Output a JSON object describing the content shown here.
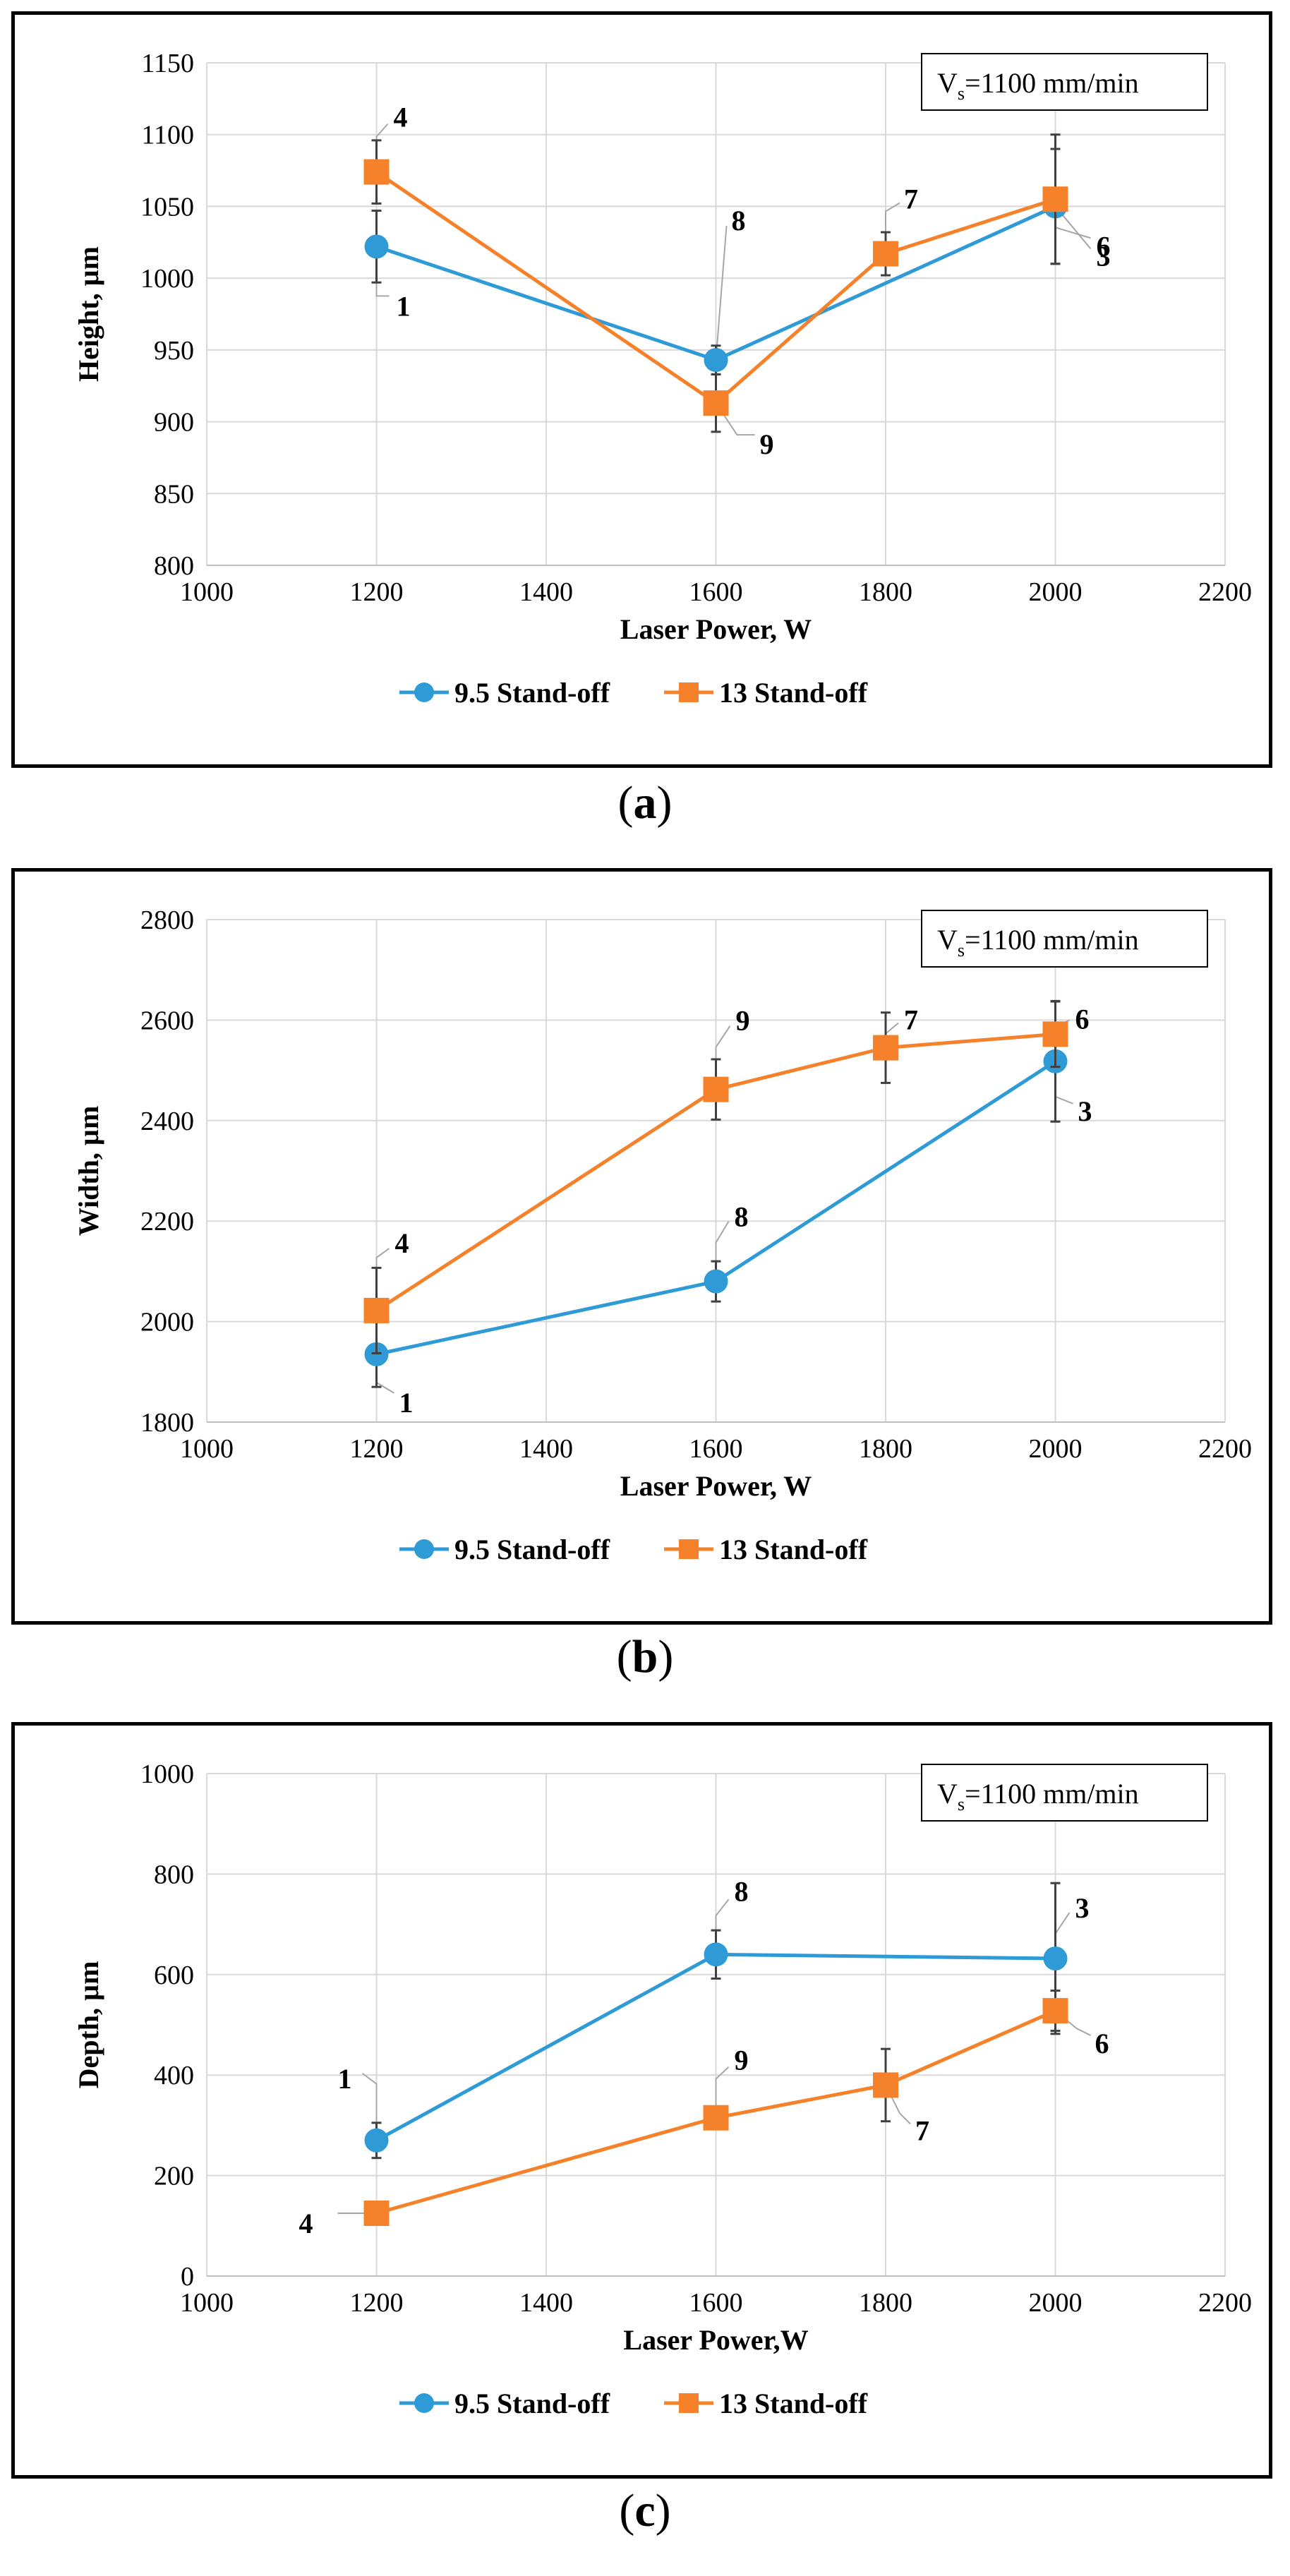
{
  "colors": {
    "series1": "#2E9BD7",
    "series2": "#F5822A",
    "grid": "#D9D9D9",
    "leader": "#A6A6A6"
  },
  "captions": {
    "a": "a",
    "b": "b",
    "c": "c"
  },
  "chart_data": [
    {
      "type": "line",
      "panel": "a",
      "xlabel": "Laser Power, W",
      "ylabel": "Height, µm",
      "xlim": [
        1000,
        2200
      ],
      "ylim": [
        800,
        1150
      ],
      "xticks": [
        1000,
        1200,
        1400,
        1600,
        1800,
        2000,
        2200
      ],
      "yticks": [
        800,
        850,
        900,
        950,
        1000,
        1050,
        1100,
        1150
      ],
      "speed_label": {
        "main": "V",
        "sub": "s",
        "rest": "=1100 mm/min"
      },
      "legend": [
        "9.5 Stand-off",
        "13 Stand-off"
      ],
      "series": [
        {
          "name": "9.5 Stand-off",
          "marker": "circle",
          "x": [
            1200,
            1600,
            2000
          ],
          "y": [
            1022,
            943,
            1050
          ],
          "err": [
            25,
            10,
            40
          ],
          "annot": [
            "1",
            "8",
            "3"
          ]
        },
        {
          "name": "13 Stand-off",
          "marker": "square",
          "x": [
            1200,
            1600,
            1800,
            2000
          ],
          "y": [
            1074,
            913,
            1017,
            1055
          ],
          "err": [
            22,
            20,
            15,
            45
          ],
          "annot": [
            "4",
            "9",
            "7",
            "6"
          ]
        }
      ]
    },
    {
      "type": "line",
      "panel": "b",
      "xlabel": "Laser Power, W",
      "ylabel": "Width, µm",
      "xlim": [
        1000,
        2200
      ],
      "ylim": [
        1800,
        2800
      ],
      "xticks": [
        1000,
        1200,
        1400,
        1600,
        1800,
        2000,
        2200
      ],
      "yticks": [
        1800,
        2000,
        2200,
        2400,
        2600,
        2800
      ],
      "speed_label": {
        "main": "V",
        "sub": "s",
        "rest": "=1100 mm/min"
      },
      "legend": [
        "9.5 Stand-off",
        "13 Stand-off"
      ],
      "series": [
        {
          "name": "9.5 Stand-off",
          "marker": "circle",
          "x": [
            1200,
            1600,
            2000
          ],
          "y": [
            1935,
            2080,
            2518
          ],
          "err": [
            65,
            40,
            120
          ],
          "annot": [
            "1",
            "8",
            "3"
          ]
        },
        {
          "name": "13 Stand-off",
          "marker": "square",
          "x": [
            1200,
            1600,
            1800,
            2000
          ],
          "y": [
            2022,
            2462,
            2545,
            2572
          ],
          "err": [
            85,
            60,
            70,
            65
          ],
          "annot": [
            "4",
            "9",
            "7",
            "6"
          ]
        }
      ]
    },
    {
      "type": "line",
      "panel": "c",
      "xlabel": "Laser Power,W",
      "ylabel": "Depth, µm",
      "xlim": [
        1000,
        2200
      ],
      "ylim": [
        0,
        1000
      ],
      "xticks": [
        1000,
        1200,
        1400,
        1600,
        1800,
        2000,
        2200
      ],
      "yticks": [
        0,
        200,
        400,
        600,
        800,
        1000
      ],
      "speed_label": {
        "main": "V",
        "sub": "s",
        "rest": "=1100 mm/min"
      },
      "legend": [
        "9.5 Stand-off",
        "13 Stand-off"
      ],
      "series": [
        {
          "name": "9.5 Stand-off",
          "marker": "circle",
          "x": [
            1200,
            1600,
            2000
          ],
          "y": [
            270,
            640,
            632
          ],
          "err": [
            35,
            48,
            150
          ],
          "annot": [
            "1",
            "8",
            "3"
          ]
        },
        {
          "name": "13 Stand-off",
          "marker": "square",
          "x": [
            1200,
            1600,
            1800,
            2000
          ],
          "y": [
            125,
            315,
            380,
            528
          ],
          "err": [
            15,
            20,
            72,
            40
          ],
          "annot": [
            "4",
            "9",
            "7",
            "6"
          ]
        }
      ]
    }
  ]
}
